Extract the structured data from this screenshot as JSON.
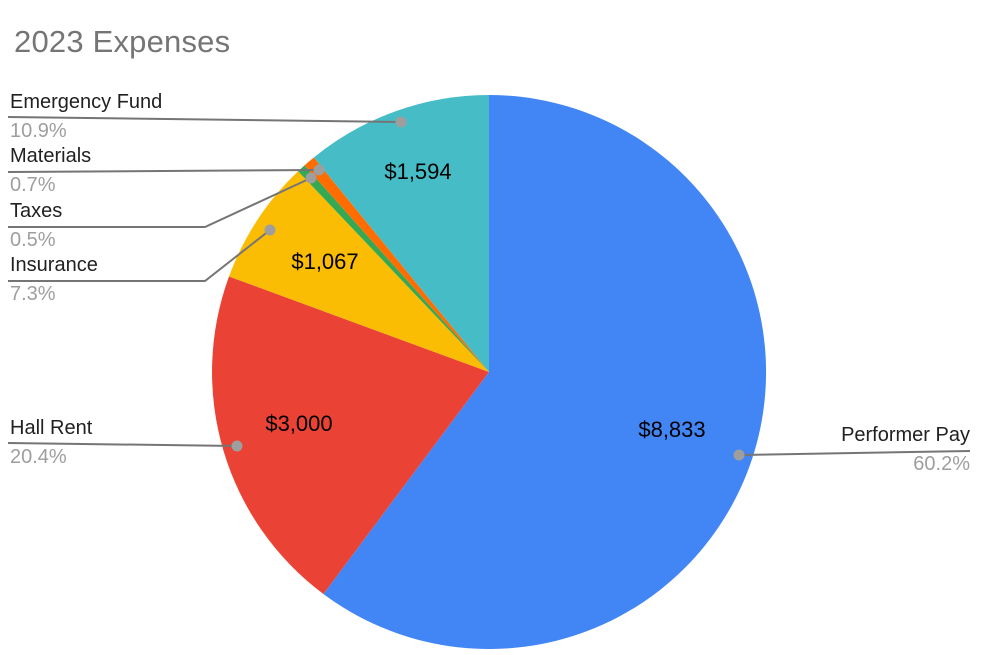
{
  "title": "2023 Expenses",
  "chart_data": {
    "type": "pie",
    "title": "2023 Expenses",
    "direction": "clockwise",
    "start_angle_deg": 0,
    "legend_position": "outside-callout-labels",
    "slices": [
      {
        "label": "Performer Pay",
        "percent": 60.2,
        "percent_label": "60.2%",
        "value_label": "$8,833",
        "color": "#4285f4"
      },
      {
        "label": "Hall Rent",
        "percent": 20.4,
        "percent_label": "20.4%",
        "value_label": "$3,000",
        "color": "#ea4335"
      },
      {
        "label": "Insurance",
        "percent": 7.3,
        "percent_label": "7.3%",
        "value_label": "$1,067",
        "color": "#fbbc04"
      },
      {
        "label": "Taxes",
        "percent": 0.5,
        "percent_label": "0.5%",
        "color": "#34a853"
      },
      {
        "label": "Materials",
        "percent": 0.7,
        "percent_label": "0.7%",
        "color": "#ff6d01"
      },
      {
        "label": "Emergency Fund",
        "percent": 10.9,
        "percent_label": "10.9%",
        "value_label": "$1,594",
        "color": "#46bdc6"
      }
    ]
  },
  "colors": {
    "background": "#ffffff",
    "title_text": "#757575",
    "label_text": "#212121",
    "percent_text": "#9e9e9e",
    "leader_line": "#757575",
    "leader_dot": "#9e9e9e"
  }
}
